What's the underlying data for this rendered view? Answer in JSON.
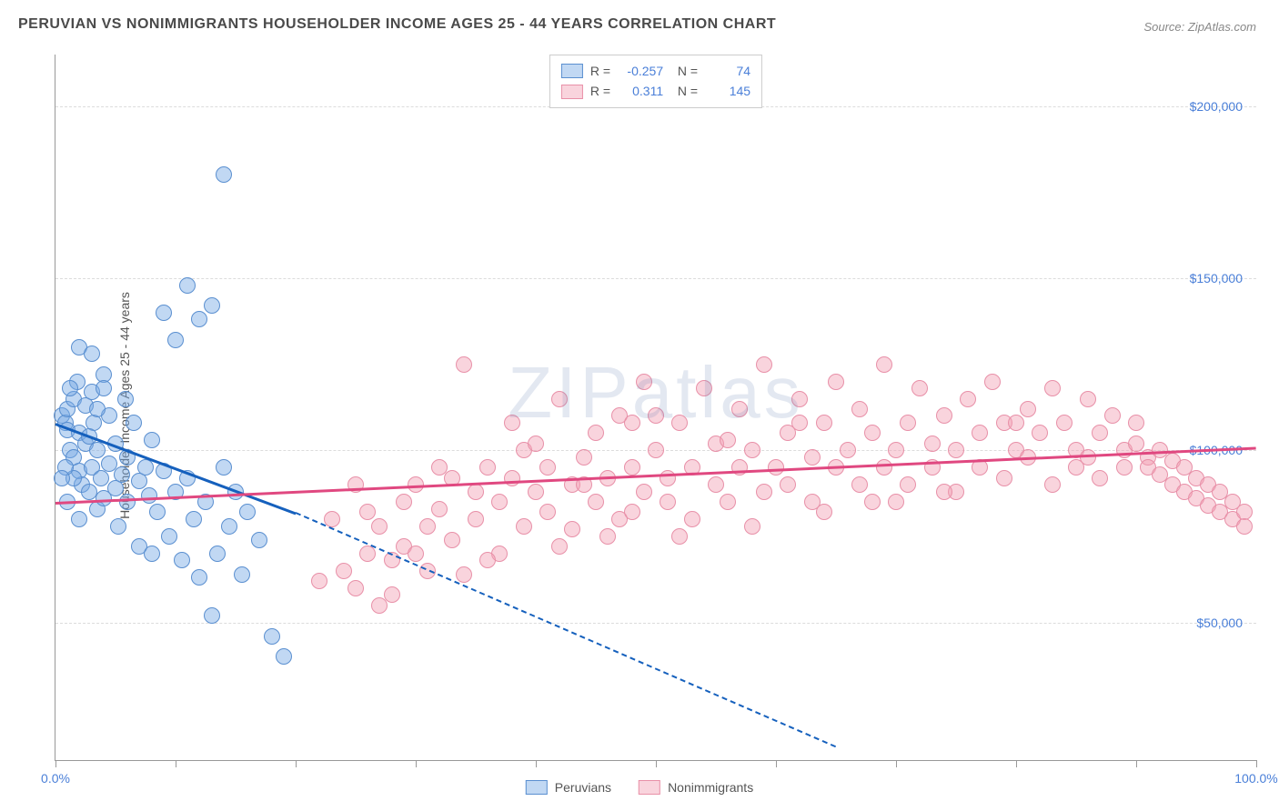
{
  "title": "PERUVIAN VS NONIMMIGRANTS HOUSEHOLDER INCOME AGES 25 - 44 YEARS CORRELATION CHART",
  "source": "Source: ZipAtlas.com",
  "watermark": "ZIPatlas",
  "y_axis_label": "Householder Income Ages 25 - 44 years",
  "chart": {
    "type": "scatter",
    "background_color": "#ffffff",
    "grid_color": "#dcdcdc",
    "axis_color": "#999999",
    "xlim": [
      0,
      100
    ],
    "ylim": [
      10000,
      215000
    ],
    "y_ticks": [
      50000,
      100000,
      150000,
      200000
    ],
    "y_tick_labels": [
      "$50,000",
      "$100,000",
      "$150,000",
      "$200,000"
    ],
    "x_ticks": [
      0,
      10,
      20,
      30,
      40,
      50,
      60,
      70,
      80,
      90,
      100
    ],
    "x_tick_labels_shown": {
      "0": "0.0%",
      "100": "100.0%"
    },
    "tick_label_color": "#4a7fd8",
    "label_fontsize": 14,
    "title_fontsize": 16
  },
  "series": {
    "peruvians": {
      "label": "Peruvians",
      "fill_color": "rgba(118, 168, 228, 0.45)",
      "stroke_color": "#5a8fd0",
      "trend_color": "#1560bd",
      "R": "-0.257",
      "N": "74",
      "marker_radius": 9,
      "trend": {
        "x1": 0,
        "y1": 108000,
        "x2": 20,
        "y2": 82000,
        "dash_to_x": 65,
        "dash_to_y": 14000
      },
      "points": [
        [
          0.5,
          110000
        ],
        [
          0.8,
          108000
        ],
        [
          1,
          112000
        ],
        [
          1,
          106000
        ],
        [
          1.2,
          100000
        ],
        [
          1.5,
          115000
        ],
        [
          1.5,
          98000
        ],
        [
          1.8,
          120000
        ],
        [
          2,
          105000
        ],
        [
          2,
          94000
        ],
        [
          2.2,
          90000
        ],
        [
          2.5,
          113000
        ],
        [
          2.5,
          102000
        ],
        [
          2.8,
          88000
        ],
        [
          3,
          117000
        ],
        [
          3,
          95000
        ],
        [
          3.2,
          108000
        ],
        [
          3.5,
          83000
        ],
        [
          3.5,
          100000
        ],
        [
          3.8,
          92000
        ],
        [
          4,
          122000
        ],
        [
          4,
          86000
        ],
        [
          4.5,
          96000
        ],
        [
          4.5,
          110000
        ],
        [
          5,
          89000
        ],
        [
          5,
          102000
        ],
        [
          5.2,
          78000
        ],
        [
          5.5,
          93000
        ],
        [
          5.8,
          115000
        ],
        [
          6,
          85000
        ],
        [
          6,
          98000
        ],
        [
          6.5,
          108000
        ],
        [
          7,
          91000
        ],
        [
          7,
          72000
        ],
        [
          7.5,
          95000
        ],
        [
          7.8,
          87000
        ],
        [
          8,
          103000
        ],
        [
          8,
          70000
        ],
        [
          8.5,
          82000
        ],
        [
          9,
          94000
        ],
        [
          9,
          140000
        ],
        [
          9.5,
          75000
        ],
        [
          10,
          132000
        ],
        [
          10,
          88000
        ],
        [
          10.5,
          68000
        ],
        [
          11,
          148000
        ],
        [
          11,
          92000
        ],
        [
          11.5,
          80000
        ],
        [
          12,
          138000
        ],
        [
          12,
          63000
        ],
        [
          12.5,
          85000
        ],
        [
          13,
          142000
        ],
        [
          13,
          52000
        ],
        [
          13.5,
          70000
        ],
        [
          14,
          95000
        ],
        [
          14,
          180000
        ],
        [
          14.5,
          78000
        ],
        [
          15,
          88000
        ],
        [
          15.5,
          64000
        ],
        [
          16,
          82000
        ],
        [
          17,
          74000
        ],
        [
          18,
          46000
        ],
        [
          19,
          40000
        ],
        [
          2,
          130000
        ],
        [
          3,
          128000
        ],
        [
          4,
          118000
        ],
        [
          1,
          85000
        ],
        [
          2,
          80000
        ],
        [
          1.5,
          92000
        ],
        [
          0.8,
          95000
        ],
        [
          1.2,
          118000
        ],
        [
          0.5,
          92000
        ],
        [
          2.8,
          104000
        ],
        [
          3.5,
          112000
        ]
      ]
    },
    "nonimmigrants": {
      "label": "Nonimmigrants",
      "fill_color": "rgba(242, 160, 180, 0.45)",
      "stroke_color": "#e890a8",
      "trend_color": "#e04880",
      "R": "0.311",
      "N": "145",
      "marker_radius": 9,
      "trend": {
        "x1": 0,
        "y1": 85000,
        "x2": 100,
        "y2": 101000
      },
      "points": [
        [
          22,
          62000
        ],
        [
          23,
          80000
        ],
        [
          24,
          65000
        ],
        [
          25,
          60000
        ],
        [
          26,
          82000
        ],
        [
          27,
          55000
        ],
        [
          27,
          78000
        ],
        [
          28,
          68000
        ],
        [
          29,
          85000
        ],
        [
          29,
          72000
        ],
        [
          30,
          90000
        ],
        [
          31,
          78000
        ],
        [
          31,
          65000
        ],
        [
          32,
          83000
        ],
        [
          33,
          92000
        ],
        [
          33,
          74000
        ],
        [
          34,
          125000
        ],
        [
          35,
          80000
        ],
        [
          35,
          88000
        ],
        [
          36,
          95000
        ],
        [
          37,
          70000
        ],
        [
          37,
          85000
        ],
        [
          38,
          92000
        ],
        [
          39,
          100000
        ],
        [
          39,
          78000
        ],
        [
          40,
          88000
        ],
        [
          41,
          95000
        ],
        [
          41,
          82000
        ],
        [
          42,
          115000
        ],
        [
          43,
          90000
        ],
        [
          43,
          77000
        ],
        [
          44,
          98000
        ],
        [
          45,
          85000
        ],
        [
          45,
          105000
        ],
        [
          46,
          92000
        ],
        [
          47,
          80000
        ],
        [
          47,
          110000
        ],
        [
          48,
          95000
        ],
        [
          49,
          88000
        ],
        [
          49,
          120000
        ],
        [
          50,
          100000
        ],
        [
          51,
          92000
        ],
        [
          51,
          85000
        ],
        [
          52,
          108000
        ],
        [
          53,
          95000
        ],
        [
          53,
          80000
        ],
        [
          54,
          118000
        ],
        [
          55,
          90000
        ],
        [
          55,
          102000
        ],
        [
          56,
          85000
        ],
        [
          57,
          112000
        ],
        [
          57,
          95000
        ],
        [
          58,
          100000
        ],
        [
          59,
          125000
        ],
        [
          59,
          88000
        ],
        [
          60,
          95000
        ],
        [
          61,
          105000
        ],
        [
          61,
          90000
        ],
        [
          62,
          115000
        ],
        [
          63,
          98000
        ],
        [
          63,
          85000
        ],
        [
          64,
          108000
        ],
        [
          65,
          120000
        ],
        [
          65,
          95000
        ],
        [
          66,
          100000
        ],
        [
          67,
          90000
        ],
        [
          67,
          112000
        ],
        [
          68,
          105000
        ],
        [
          69,
          95000
        ],
        [
          69,
          125000
        ],
        [
          70,
          100000
        ],
        [
          71,
          108000
        ],
        [
          71,
          90000
        ],
        [
          72,
          118000
        ],
        [
          73,
          102000
        ],
        [
          73,
          95000
        ],
        [
          74,
          110000
        ],
        [
          75,
          100000
        ],
        [
          75,
          88000
        ],
        [
          76,
          115000
        ],
        [
          77,
          105000
        ],
        [
          77,
          95000
        ],
        [
          78,
          120000
        ],
        [
          79,
          108000
        ],
        [
          79,
          92000
        ],
        [
          80,
          100000
        ],
        [
          81,
          112000
        ],
        [
          81,
          98000
        ],
        [
          82,
          105000
        ],
        [
          83,
          118000
        ],
        [
          83,
          90000
        ],
        [
          84,
          108000
        ],
        [
          85,
          100000
        ],
        [
          85,
          95000
        ],
        [
          86,
          115000
        ],
        [
          87,
          105000
        ],
        [
          87,
          92000
        ],
        [
          88,
          110000
        ],
        [
          89,
          100000
        ],
        [
          89,
          95000
        ],
        [
          90,
          108000
        ],
        [
          90,
          102000
        ],
        [
          91,
          98000
        ],
        [
          91,
          95000
        ],
        [
          92,
          100000
        ],
        [
          92,
          93000
        ],
        [
          93,
          97000
        ],
        [
          93,
          90000
        ],
        [
          94,
          95000
        ],
        [
          94,
          88000
        ],
        [
          95,
          92000
        ],
        [
          95,
          86000
        ],
        [
          96,
          90000
        ],
        [
          96,
          84000
        ],
        [
          97,
          88000
        ],
        [
          97,
          82000
        ],
        [
          98,
          85000
        ],
        [
          98,
          80000
        ],
        [
          99,
          82000
        ],
        [
          99,
          78000
        ],
        [
          46,
          75000
        ],
        [
          52,
          75000
        ],
        [
          58,
          78000
        ],
        [
          64,
          82000
        ],
        [
          70,
          85000
        ],
        [
          40,
          102000
        ],
        [
          48,
          108000
        ],
        [
          56,
          103000
        ],
        [
          62,
          108000
        ],
        [
          68,
          85000
        ],
        [
          74,
          88000
        ],
        [
          80,
          108000
        ],
        [
          86,
          98000
        ],
        [
          30,
          70000
        ],
        [
          36,
          68000
        ],
        [
          42,
          72000
        ],
        [
          28,
          58000
        ],
        [
          34,
          64000
        ],
        [
          25,
          90000
        ],
        [
          38,
          108000
        ],
        [
          44,
          90000
        ],
        [
          50,
          110000
        ],
        [
          26,
          70000
        ],
        [
          32,
          95000
        ],
        [
          48,
          82000
        ]
      ]
    }
  },
  "bottom_legend": [
    {
      "label": "Peruvians",
      "key": "peruvians"
    },
    {
      "label": "Nonimmigrants",
      "key": "nonimmigrants"
    }
  ]
}
